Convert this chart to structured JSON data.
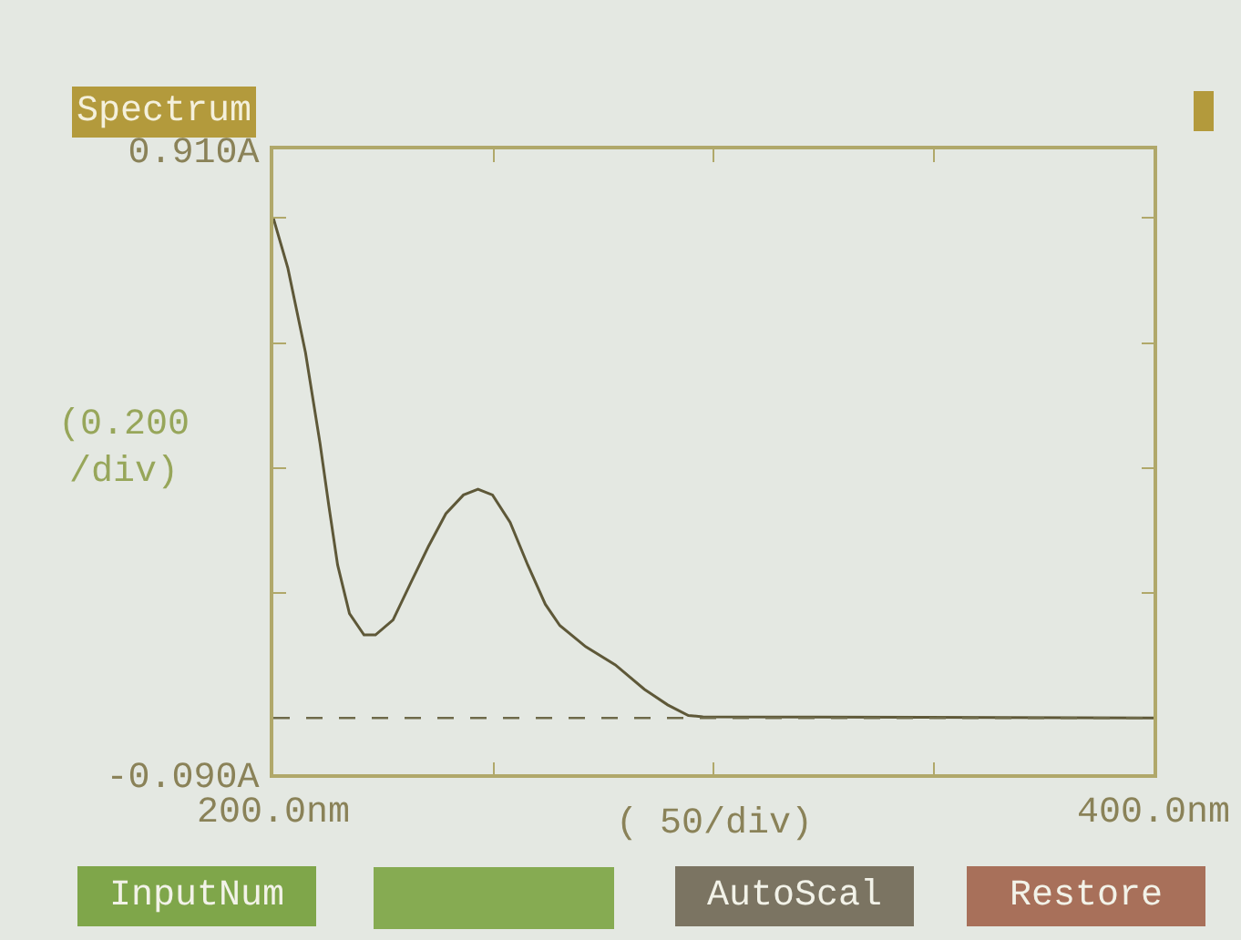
{
  "chart_data": {
    "type": "line",
    "title": "Spectrum",
    "xlabel": "( 50/div)",
    "ylabel": "(0.200 /div)",
    "x": [
      200,
      203.3,
      207.3,
      210.6,
      212.6,
      214.6,
      217.3,
      220.6,
      223.2,
      227.2,
      231.2,
      235.2,
      239.2,
      243.2,
      246.5,
      249.8,
      253.8,
      257.8,
      261.8,
      265.1,
      271.0,
      277.7,
      284.3,
      289.6,
      294.3,
      297.6,
      400
    ],
    "series": [
      {
        "color": "#5e5838",
        "values": [
          0.8,
          0.72,
          0.585,
          0.44,
          0.34,
          0.245,
          0.167,
          0.133,
          0.133,
          0.157,
          0.216,
          0.274,
          0.327,
          0.357,
          0.366,
          0.357,
          0.313,
          0.245,
          0.182,
          0.148,
          0.114,
          0.085,
          0.046,
          0.021,
          0.004,
          0.002,
          0.0
        ]
      }
    ],
    "xlim": [
      200,
      400
    ],
    "xticks": [
      {
        "value": 200,
        "label": "200.0nm"
      },
      {
        "value": 250,
        "label": null
      },
      {
        "value": 300,
        "label": null
      },
      {
        "value": 350,
        "label": null
      },
      {
        "value": 400,
        "label": "400.0nm"
      }
    ],
    "ylim": [
      -0.09,
      0.91
    ],
    "yticks": [
      {
        "value": -0.09,
        "label": "-0.090A"
      },
      {
        "value": 0.2,
        "label": null
      },
      {
        "value": 0.4,
        "label": null
      },
      {
        "value": 0.6,
        "label": null
      },
      {
        "value": 0.8,
        "label": null
      },
      {
        "value": 0.91,
        "label": "0.910A"
      }
    ],
    "ref_lines": [
      {
        "axis": "y",
        "value": 0,
        "line_style": "dashed",
        "color": "#6e6a4a"
      }
    ],
    "annotations": [
      "InputNum",
      "AutoScal",
      "Restore"
    ],
    "grid": false,
    "legend": false,
    "marker": "none",
    "line_style": "solid"
  }
}
